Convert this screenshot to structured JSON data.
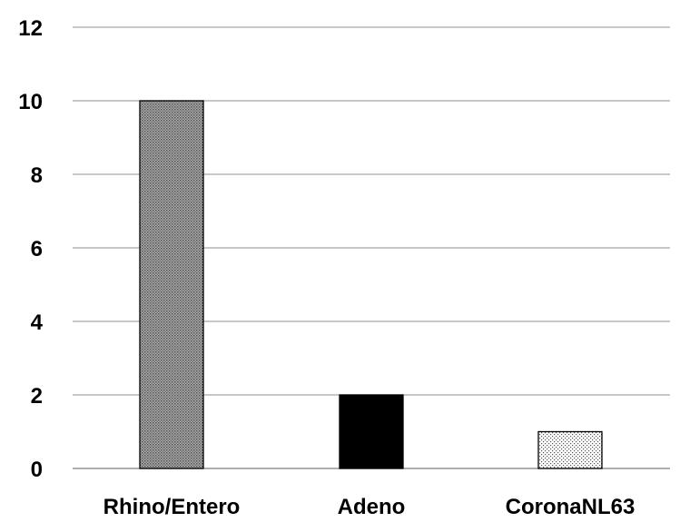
{
  "chart_data": {
    "type": "bar",
    "title": "",
    "xlabel": "",
    "ylabel": "",
    "categories": [
      "Rhino/Entero",
      "Adeno",
      "CoronaNL63"
    ],
    "values": [
      10,
      2,
      1
    ],
    "ylim": [
      0,
      12
    ],
    "yticks": [
      "0",
      "2",
      "4",
      "6",
      "8",
      "10",
      "12"
    ],
    "grid": true,
    "legend": "none",
    "bar_fills": [
      "pattern-dense-dots",
      "solid-black",
      "pattern-light-dots"
    ],
    "colors": {
      "grid": "#a6a6a6",
      "axis": "#7f7f7f",
      "bar_stroke": "#000000",
      "text": "#000000"
    }
  }
}
